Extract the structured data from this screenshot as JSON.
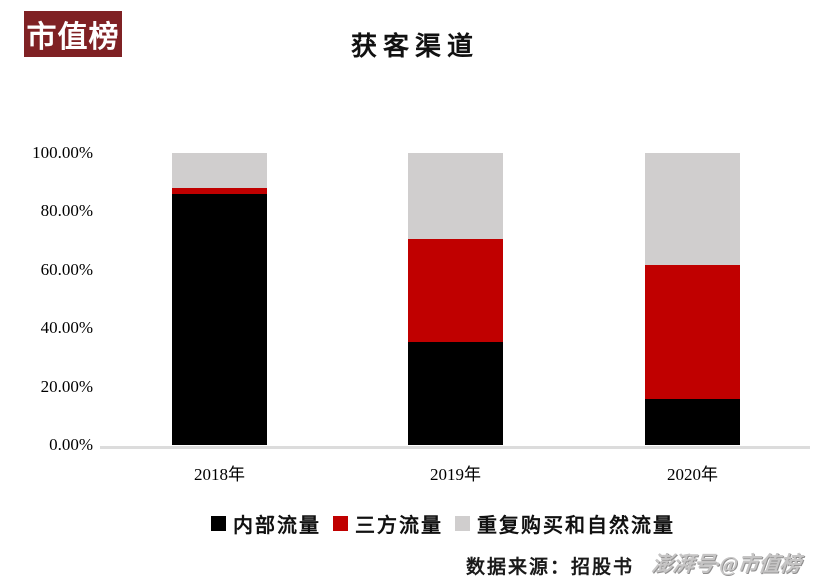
{
  "logo": {
    "text": "市值榜"
  },
  "header": {
    "title": "获客渠道"
  },
  "footer": {
    "source_note": "数据来源：招股书",
    "watermark": "澎湃号·@市值榜"
  },
  "colors": {
    "logo_bg": "#7f2124",
    "logo_text": "#ffffff",
    "axis_line": "#dcdcdc",
    "internal_traffic": "#000000",
    "third_party_traffic": "#c00000",
    "repeat_and_natural_traffic": "#d0cece",
    "watermark": "#c6c5c5",
    "background": "#ffffff"
  },
  "chart_data": {
    "type": "bar",
    "stacked": true,
    "title": "获客渠道",
    "categories": [
      "2018年",
      "2019年",
      "2020年"
    ],
    "series": [
      {
        "name": "内部流量",
        "color": "#000000",
        "values": [
          85.8,
          35.3,
          15.9
        ]
      },
      {
        "name": "三方流量",
        "color": "#c00000",
        "values": [
          2.1,
          35.4,
          45.9
        ]
      },
      {
        "name": "重复购买和自然流量",
        "color": "#d0cece",
        "values": [
          12.1,
          29.3,
          38.2
        ]
      }
    ],
    "xlabel": "",
    "ylabel": "",
    "ylim": [
      0,
      100
    ],
    "ytick_values": [
      0,
      20,
      40,
      60,
      80,
      100
    ],
    "ytick_labels": [
      "0.00%",
      "20.00%",
      "40.00%",
      "60.00%",
      "80.00%",
      "100.00%"
    ],
    "grid": false,
    "legend_position": "bottom",
    "unit": "percent"
  }
}
